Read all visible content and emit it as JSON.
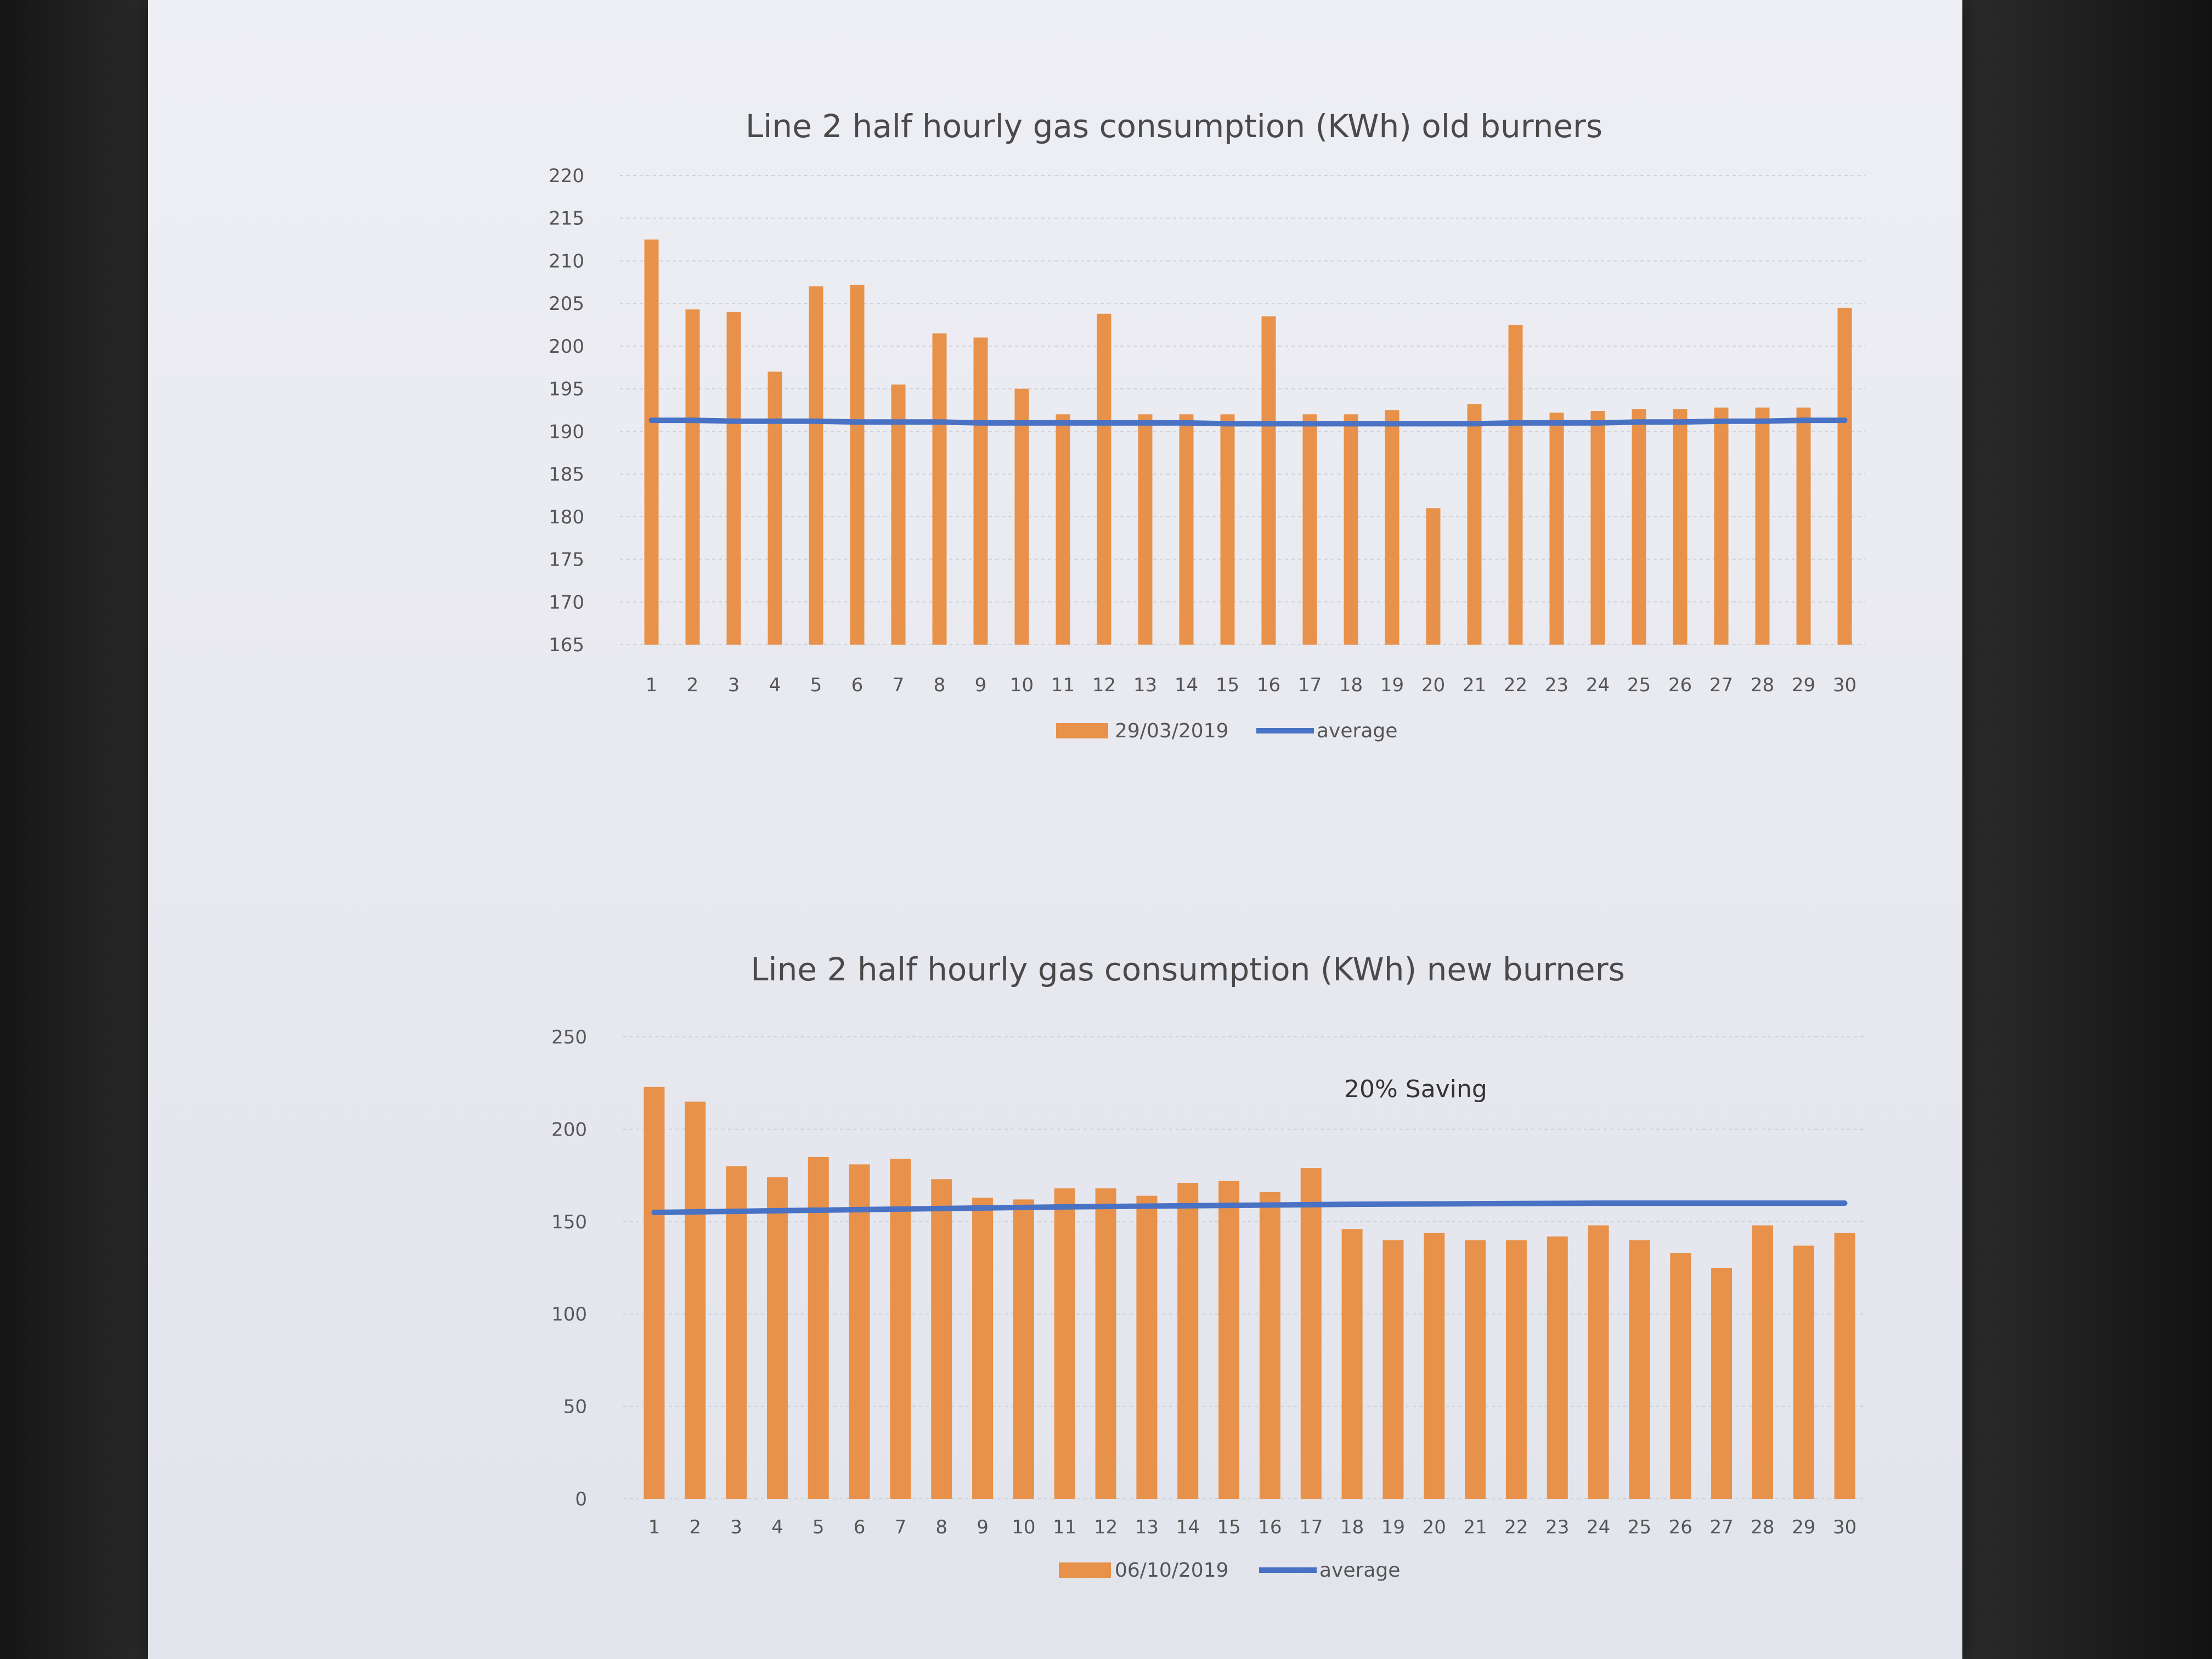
{
  "chart_data": [
    {
      "type": "bar",
      "title": "Line 2 half hourly gas consumption (KWh) old burners",
      "xlabel": "",
      "ylabel": "",
      "ylim": [
        165,
        220
      ],
      "yticks": [
        165,
        170,
        175,
        180,
        185,
        190,
        195,
        200,
        205,
        210,
        215,
        220
      ],
      "grid": true,
      "legend_position": "bottom",
      "categories": [
        "1",
        "2",
        "3",
        "4",
        "5",
        "6",
        "7",
        "8",
        "9",
        "10",
        "11",
        "12",
        "13",
        "14",
        "15",
        "16",
        "17",
        "18",
        "19",
        "20",
        "21",
        "22",
        "23",
        "24",
        "25",
        "26",
        "27",
        "28",
        "29",
        "30"
      ],
      "series": [
        {
          "name": "29/03/2019",
          "type": "bar",
          "color": "#e8914a",
          "values": [
            212.5,
            204.3,
            204,
            197,
            207,
            207.2,
            195.5,
            201.5,
            201,
            195,
            192,
            203.8,
            192,
            192,
            192,
            203.5,
            192,
            192,
            192.5,
            181,
            193.2,
            202.5,
            192.2,
            192.4,
            192.6,
            192.6,
            192.8,
            192.8,
            192.8,
            204.5
          ]
        },
        {
          "name": "average",
          "type": "line",
          "color": "#4a72c4",
          "values": [
            191.3,
            191.3,
            191.2,
            191.2,
            191.2,
            191.1,
            191.1,
            191.1,
            191,
            191,
            191,
            191,
            191,
            191,
            190.9,
            190.9,
            190.9,
            190.9,
            190.9,
            190.9,
            190.9,
            191,
            191,
            191,
            191.1,
            191.1,
            191.2,
            191.2,
            191.3,
            191.3
          ]
        }
      ]
    },
    {
      "type": "bar",
      "title": "Line 2 half hourly gas consumption (KWh) new burners",
      "xlabel": "",
      "ylabel": "",
      "ylim": [
        0,
        250
      ],
      "yticks": [
        0,
        50,
        100,
        150,
        200,
        250
      ],
      "grid": true,
      "legend_position": "bottom",
      "annotation": "20% Saving",
      "categories": [
        "1",
        "2",
        "3",
        "4",
        "5",
        "6",
        "7",
        "8",
        "9",
        "10",
        "11",
        "12",
        "13",
        "14",
        "15",
        "16",
        "17",
        "18",
        "19",
        "20",
        "21",
        "22",
        "23",
        "24",
        "25",
        "26",
        "27",
        "28",
        "29",
        "30"
      ],
      "series": [
        {
          "name": "06/10/2019",
          "type": "bar",
          "color": "#e8914a",
          "values": [
            223,
            215,
            180,
            174,
            185,
            181,
            184,
            173,
            163,
            162,
            168,
            168,
            164,
            171,
            172,
            166,
            179,
            146,
            140,
            144,
            140,
            140,
            142,
            148,
            140,
            133,
            125,
            148,
            137,
            144
          ]
        },
        {
          "name": "average",
          "type": "line",
          "color": "#4a72c4",
          "values": [
            155,
            155.3,
            155.6,
            155.9,
            156.2,
            156.5,
            156.8,
            157.1,
            157.4,
            157.7,
            158,
            158.2,
            158.4,
            158.6,
            158.8,
            159,
            159.2,
            159.4,
            159.5,
            159.6,
            159.7,
            159.8,
            159.9,
            160,
            160,
            160,
            160,
            160,
            160,
            160
          ]
        }
      ]
    }
  ]
}
